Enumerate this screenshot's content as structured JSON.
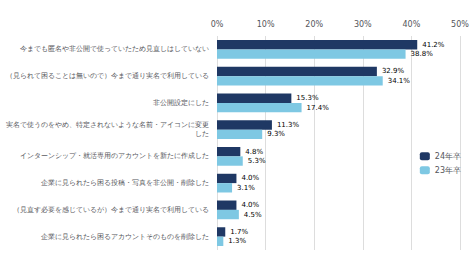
{
  "chart_data": {
    "type": "bar",
    "orientation": "horizontal",
    "categories": [
      "今までも匿名や非公開で使っていたため見直しはしていない",
      "（見られて困ることは無いので）今まで通り実名で利用している",
      "非公開設定にした",
      "実名で使うのをやめ、特定されないような名前・アイコンに変更\nした",
      "インターンシップ・就活専用のアカウントを新たに作成した",
      "企業に見られたら困る投稿・写真を非公開・削除した",
      "（見直す必要を感じているが）今まで通り実名で利用している",
      "企業に見られたら困るアカウントそのものを削除した"
    ],
    "series": [
      {
        "name": "24年卒",
        "color": "#1f3864",
        "values": [
          41.2,
          32.9,
          15.3,
          11.3,
          4.8,
          4.0,
          4.0,
          1.7
        ],
        "value_labels": [
          "41.2%",
          "32.9%",
          "15.3%",
          "11.3%",
          "4.8%",
          "4.0%",
          "4.0%",
          "1.7%"
        ]
      },
      {
        "name": "23年卒",
        "color": "#7ec8e3",
        "values": [
          38.8,
          34.1,
          17.4,
          9.3,
          5.3,
          3.1,
          4.5,
          1.3
        ],
        "value_labels": [
          "38.8%",
          "34.1%",
          "17.4%",
          "9.3%",
          "5.3%",
          "3.1%",
          "4.5%",
          "1.3%"
        ]
      }
    ],
    "xlim": [
      0,
      50
    ],
    "xticks": [
      {
        "value": 0,
        "label": "0%"
      },
      {
        "value": 10,
        "label": "10%"
      },
      {
        "value": 20,
        "label": "20%"
      },
      {
        "value": 30,
        "label": "30%"
      },
      {
        "value": 40,
        "label": "40%"
      },
      {
        "value": 50,
        "label": "50%"
      }
    ],
    "grid": true,
    "legend": "right",
    "data_labels": true
  }
}
